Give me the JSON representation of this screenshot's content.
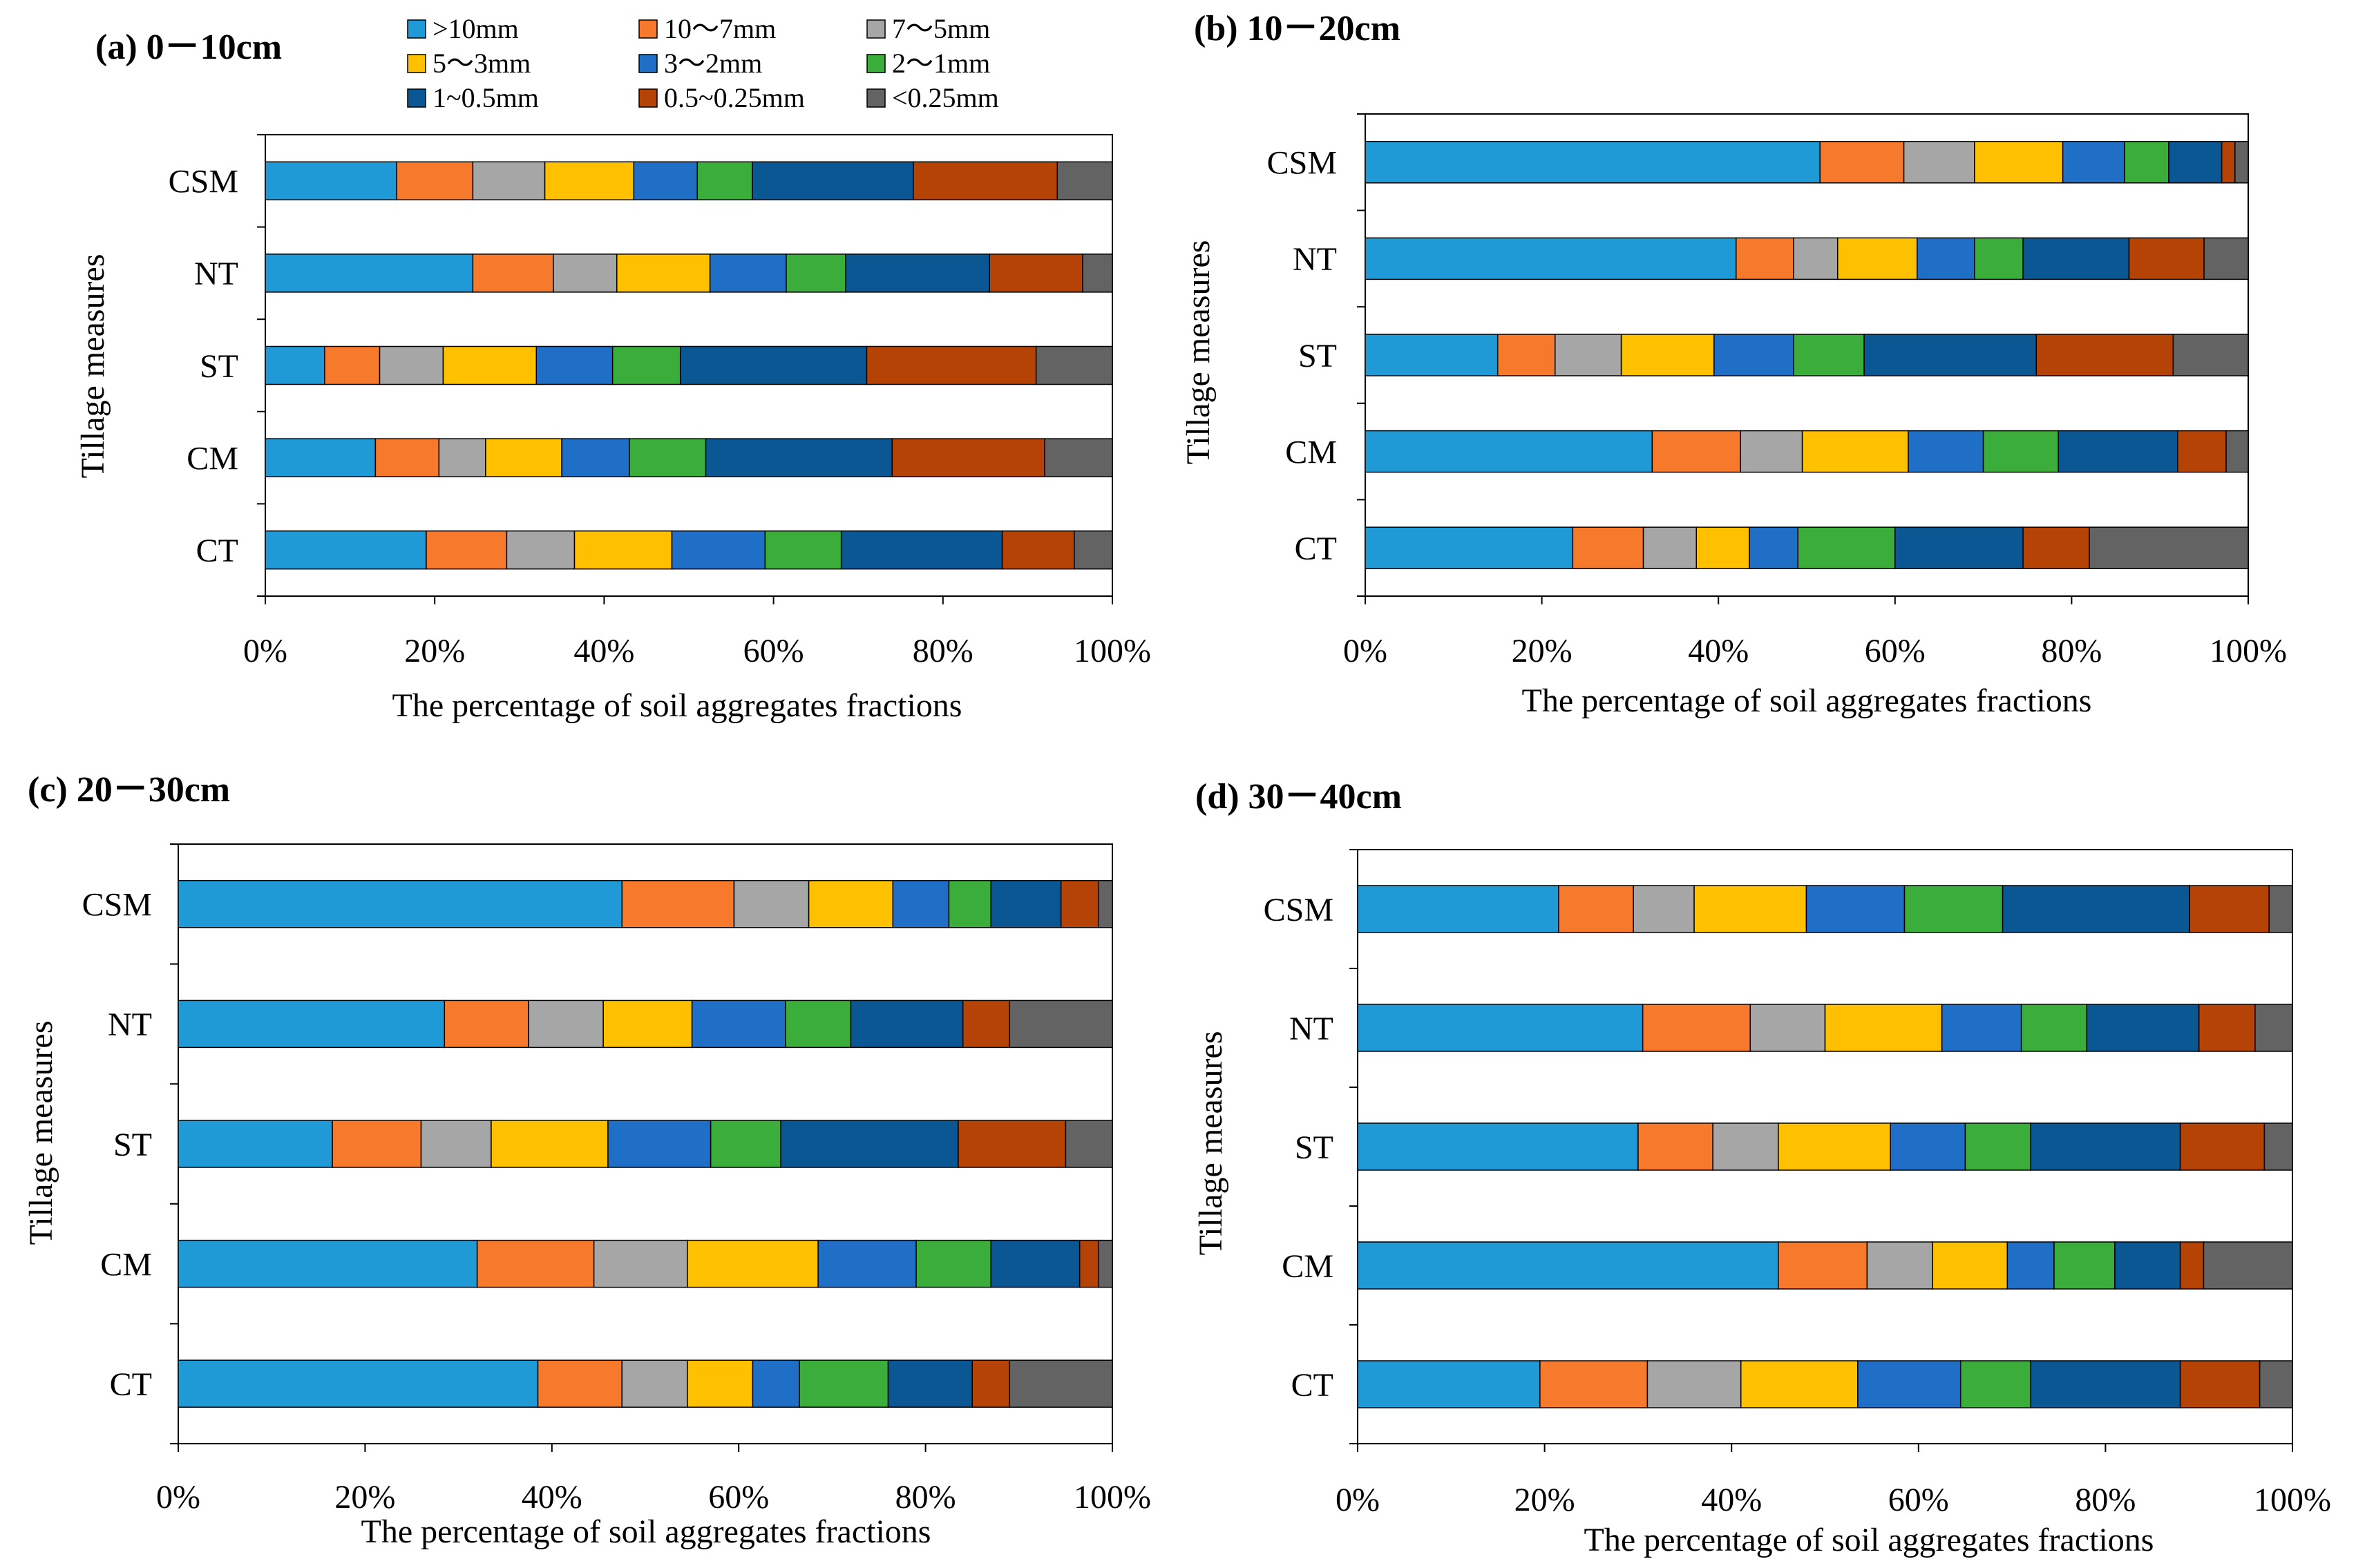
{
  "figure": {
    "legend": [
      {
        "label": ">10mm",
        "color": "#1f9ad6"
      },
      {
        "label": "10～7mm",
        "color": "#f7792c"
      },
      {
        "label": "7～5mm",
        "color": "#a6a6a6"
      },
      {
        "label": "5～3mm",
        "color": "#ffc000"
      },
      {
        "label": "3～2mm",
        "color": "#1f6fc6"
      },
      {
        "label": "2～1mm",
        "color": "#3aad3a"
      },
      {
        "label": "1~0.5mm",
        "color": "#0b5794"
      },
      {
        "label": "0.5~0.25mm",
        "color": "#b54306"
      },
      {
        "label": "<0.25mm",
        "color": "#636363"
      }
    ]
  },
  "chart_data": [
    {
      "type": "bar",
      "orientation": "horizontal",
      "stacked": true,
      "title": "(a) 0－10cm",
      "xlabel": "The percentage of soil aggregates fractions",
      "ylabel": "Tillage measures",
      "xlim": [
        0,
        100
      ],
      "xticks": [
        "0%",
        "20%",
        "40%",
        "60%",
        "80%",
        "100%"
      ],
      "categories": [
        "CSM",
        "NT",
        "ST",
        "CM",
        "CT"
      ],
      "series": [
        {
          "name": ">10mm",
          "values": [
            15.5,
            24.5,
            7.0,
            13.0,
            19.0
          ]
        },
        {
          "name": "10～7mm",
          "values": [
            9.0,
            9.5,
            6.5,
            7.5,
            9.5
          ]
        },
        {
          "name": "7～5mm",
          "values": [
            8.5,
            7.5,
            7.5,
            5.5,
            8.0
          ]
        },
        {
          "name": "5～3mm",
          "values": [
            10.5,
            11.0,
            11.0,
            9.0,
            11.5
          ]
        },
        {
          "name": "3～2mm",
          "values": [
            7.5,
            9.0,
            9.0,
            8.0,
            11.0
          ]
        },
        {
          "name": "2～1mm",
          "values": [
            6.5,
            7.0,
            8.0,
            9.0,
            9.0
          ]
        },
        {
          "name": "1~0.5mm",
          "values": [
            19.0,
            17.0,
            22.0,
            22.0,
            19.0
          ]
        },
        {
          "name": "0.5~0.25mm",
          "values": [
            17.0,
            11.0,
            20.0,
            18.0,
            8.5
          ]
        },
        {
          "name": "<0.25mm",
          "values": [
            6.5,
            3.5,
            9.0,
            8.0,
            4.5
          ]
        }
      ]
    },
    {
      "type": "bar",
      "orientation": "horizontal",
      "stacked": true,
      "title": "(b) 10－20cm",
      "xlabel": "The percentage of soil aggregates fractions",
      "ylabel": "Tillage measures",
      "xlim": [
        0,
        100
      ],
      "xticks": [
        "0%",
        "20%",
        "40%",
        "60%",
        "80%",
        "100%"
      ],
      "categories": [
        "CSM",
        "NT",
        "ST",
        "CM",
        "CT"
      ],
      "series": [
        {
          "name": ">10mm",
          "values": [
            51.5,
            42.0,
            15.0,
            32.5,
            23.5
          ]
        },
        {
          "name": "10～7mm",
          "values": [
            9.5,
            6.5,
            6.5,
            10.0,
            8.0
          ]
        },
        {
          "name": "7～5mm",
          "values": [
            8.0,
            5.0,
            7.5,
            7.0,
            6.0
          ]
        },
        {
          "name": "5～3mm",
          "values": [
            10.0,
            9.0,
            10.5,
            12.0,
            6.0
          ]
        },
        {
          "name": "3～2mm",
          "values": [
            7.0,
            6.5,
            9.0,
            8.5,
            5.5
          ]
        },
        {
          "name": "2～1mm",
          "values": [
            5.0,
            5.5,
            8.0,
            8.5,
            11.0
          ]
        },
        {
          "name": "1~0.5mm",
          "values": [
            6.0,
            12.0,
            19.5,
            13.5,
            14.5
          ]
        },
        {
          "name": "0.5~0.25mm",
          "values": [
            1.5,
            8.5,
            15.5,
            5.5,
            7.5
          ]
        },
        {
          "name": "<0.25mm",
          "values": [
            1.5,
            5.0,
            8.5,
            2.5,
            18.0
          ]
        }
      ]
    },
    {
      "type": "bar",
      "orientation": "horizontal",
      "stacked": true,
      "title": "(c) 20－30cm",
      "xlabel": "The percentage of soil aggregates fractions",
      "ylabel": "Tillage measures",
      "xlim": [
        0,
        100
      ],
      "xticks": [
        "0%",
        "20%",
        "40%",
        "60%",
        "80%",
        "100%"
      ],
      "categories": [
        "CSM",
        "NT",
        "ST",
        "CM",
        "CT"
      ],
      "series": [
        {
          "name": ">10mm",
          "values": [
            47.5,
            28.5,
            16.5,
            32.0,
            38.5
          ]
        },
        {
          "name": "10～7mm",
          "values": [
            12.0,
            9.0,
            9.5,
            12.5,
            9.0
          ]
        },
        {
          "name": "7～5mm",
          "values": [
            8.0,
            8.0,
            7.5,
            10.0,
            7.0
          ]
        },
        {
          "name": "5～3mm",
          "values": [
            9.0,
            9.5,
            12.5,
            14.0,
            7.0
          ]
        },
        {
          "name": "3～2mm",
          "values": [
            6.0,
            10.0,
            11.0,
            10.5,
            5.0
          ]
        },
        {
          "name": "2～1mm",
          "values": [
            4.5,
            7.0,
            7.5,
            8.0,
            9.5
          ]
        },
        {
          "name": "1~0.5mm",
          "values": [
            7.5,
            12.0,
            19.0,
            9.5,
            9.0
          ]
        },
        {
          "name": "0.5~0.25mm",
          "values": [
            4.0,
            5.0,
            11.5,
            2.0,
            4.0
          ]
        },
        {
          "name": "<0.25mm",
          "values": [
            1.5,
            11.0,
            5.0,
            1.5,
            11.0
          ]
        }
      ]
    },
    {
      "type": "bar",
      "orientation": "horizontal",
      "stacked": true,
      "title": "(d) 30－40cm",
      "xlabel": "The percentage of soil aggregates fractions",
      "ylabel": "Tillage measures",
      "xlim": [
        0,
        100
      ],
      "xticks": [
        "0%",
        "20%",
        "40%",
        "60%",
        "80%",
        "100%"
      ],
      "categories": [
        "CSM",
        "NT",
        "ST",
        "CM",
        "CT"
      ],
      "series": [
        {
          "name": ">10mm",
          "values": [
            21.5,
            30.5,
            30.0,
            45.0,
            19.5
          ]
        },
        {
          "name": "10～7mm",
          "values": [
            8.0,
            11.5,
            8.0,
            9.5,
            11.5
          ]
        },
        {
          "name": "7～5mm",
          "values": [
            6.5,
            8.0,
            7.0,
            7.0,
            10.0
          ]
        },
        {
          "name": "5～3mm",
          "values": [
            12.0,
            12.5,
            12.0,
            8.0,
            12.5
          ]
        },
        {
          "name": "3～2mm",
          "values": [
            10.5,
            8.5,
            8.0,
            5.0,
            11.0
          ]
        },
        {
          "name": "2～1mm",
          "values": [
            10.5,
            7.0,
            7.0,
            6.5,
            7.5
          ]
        },
        {
          "name": "1~0.5mm",
          "values": [
            20.0,
            12.0,
            16.0,
            7.0,
            16.0
          ]
        },
        {
          "name": "0.5~0.25mm",
          "values": [
            8.5,
            6.0,
            9.0,
            2.5,
            8.5
          ]
        },
        {
          "name": "<0.25mm",
          "values": [
            2.5,
            4.0,
            3.0,
            9.5,
            3.5
          ]
        }
      ]
    }
  ]
}
